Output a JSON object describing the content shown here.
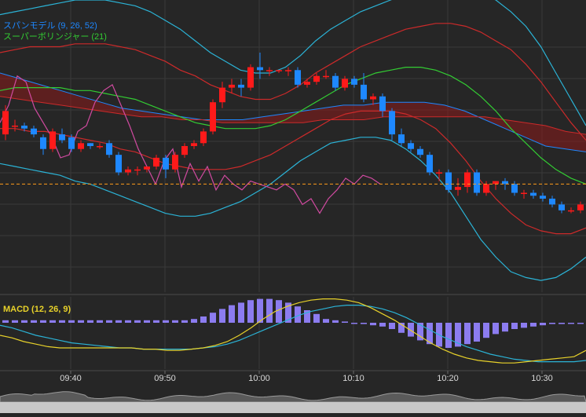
{
  "colors": {
    "background": "#262626",
    "grid": "#3a3a3a",
    "up_candle": "#ff1a1a",
    "down_candle": "#1e88ff",
    "kumo_fill": "#8b1a1a",
    "span_line": "#1e88ff",
    "bb_outer": "#2bb3d6",
    "bb_mid": "#cc2a2a",
    "bb_center": "#33cc33",
    "chikou": "#d04aa0",
    "price_line": "#ff9d1a",
    "macd_hist": "#8c7cf0",
    "macd_line": "#e8d22a",
    "signal_line": "#2bb3d6"
  },
  "legend": {
    "span_model": "スパンモデル (9, 26, 52)",
    "super_bollinger": "スーパーボリンジャー (21)",
    "macd": "MACD (12, 26, 9)"
  },
  "chart_data": [
    {
      "type": "candlestick",
      "x_tick_labels": [
        "09:40",
        "09:50",
        "10:00",
        "10:10",
        "10:20",
        "10:30"
      ],
      "current_price_line": 0.37,
      "candles": [
        [
          0.54,
          0.62,
          0.52,
          0.64
        ],
        [
          0.57,
          0.57,
          0.55,
          0.59
        ],
        [
          0.57,
          0.56,
          0.55,
          0.58
        ],
        [
          0.56,
          0.54,
          0.53,
          0.57
        ],
        [
          0.53,
          0.49,
          0.47,
          0.54
        ],
        [
          0.49,
          0.55,
          0.48,
          0.56
        ],
        [
          0.54,
          0.52,
          0.51,
          0.56
        ],
        [
          0.53,
          0.49,
          0.48,
          0.54
        ],
        [
          0.49,
          0.51,
          0.48,
          0.52
        ],
        [
          0.51,
          0.5,
          0.49,
          0.51
        ],
        [
          0.5,
          0.5,
          0.49,
          0.51
        ],
        [
          0.51,
          0.47,
          0.46,
          0.52
        ],
        [
          0.47,
          0.41,
          0.4,
          0.48
        ],
        [
          0.41,
          0.42,
          0.4,
          0.43
        ],
        [
          0.42,
          0.42,
          0.4,
          0.43
        ],
        [
          0.42,
          0.43,
          0.41,
          0.43
        ],
        [
          0.43,
          0.46,
          0.42,
          0.47
        ],
        [
          0.46,
          0.42,
          0.39,
          0.47
        ],
        [
          0.42,
          0.47,
          0.41,
          0.48
        ],
        [
          0.47,
          0.5,
          0.46,
          0.51
        ],
        [
          0.5,
          0.51,
          0.49,
          0.52
        ],
        [
          0.51,
          0.55,
          0.5,
          0.56
        ],
        [
          0.55,
          0.65,
          0.54,
          0.66
        ],
        [
          0.65,
          0.7,
          0.63,
          0.72
        ],
        [
          0.7,
          0.71,
          0.68,
          0.73
        ],
        [
          0.71,
          0.7,
          0.67,
          0.73
        ],
        [
          0.7,
          0.77,
          0.69,
          0.78
        ],
        [
          0.77,
          0.76,
          0.73,
          0.82
        ],
        [
          0.76,
          0.76,
          0.74,
          0.77
        ],
        [
          0.76,
          0.76,
          0.75,
          0.76
        ],
        [
          0.76,
          0.76,
          0.74,
          0.77
        ],
        [
          0.76,
          0.71,
          0.7,
          0.77
        ],
        [
          0.71,
          0.72,
          0.7,
          0.73
        ],
        [
          0.72,
          0.74,
          0.71,
          0.75
        ],
        [
          0.74,
          0.74,
          0.73,
          0.76
        ],
        [
          0.74,
          0.7,
          0.69,
          0.75
        ],
        [
          0.7,
          0.73,
          0.69,
          0.74
        ],
        [
          0.73,
          0.71,
          0.7,
          0.74
        ],
        [
          0.71,
          0.66,
          0.65,
          0.75
        ],
        [
          0.66,
          0.67,
          0.64,
          0.68
        ],
        [
          0.67,
          0.62,
          0.6,
          0.68
        ],
        [
          0.62,
          0.54,
          0.52,
          0.63
        ],
        [
          0.54,
          0.51,
          0.5,
          0.56
        ],
        [
          0.51,
          0.49,
          0.48,
          0.52
        ],
        [
          0.49,
          0.47,
          0.46,
          0.5
        ],
        [
          0.47,
          0.41,
          0.4,
          0.48
        ],
        [
          0.41,
          0.41,
          0.38,
          0.42
        ],
        [
          0.41,
          0.35,
          0.34,
          0.42
        ],
        [
          0.35,
          0.36,
          0.33,
          0.39
        ],
        [
          0.36,
          0.41,
          0.34,
          0.42
        ],
        [
          0.41,
          0.34,
          0.33,
          0.42
        ],
        [
          0.34,
          0.37,
          0.33,
          0.38
        ],
        [
          0.37,
          0.38,
          0.35,
          0.38
        ],
        [
          0.38,
          0.37,
          0.35,
          0.39
        ],
        [
          0.37,
          0.34,
          0.33,
          0.38
        ],
        [
          0.34,
          0.34,
          0.32,
          0.35
        ],
        [
          0.34,
          0.33,
          0.32,
          0.35
        ],
        [
          0.33,
          0.32,
          0.31,
          0.34
        ],
        [
          0.32,
          0.3,
          0.29,
          0.33
        ],
        [
          0.3,
          0.28,
          0.27,
          0.31
        ],
        [
          0.28,
          0.28,
          0.27,
          0.29
        ],
        [
          0.28,
          0.3,
          0.27,
          0.31
        ],
        [
          0.3,
          0.28,
          0.27,
          0.3
        ],
        [
          0.28,
          0.31,
          0.27,
          0.31
        ],
        [
          0.31,
          0.31,
          0.3,
          0.32
        ],
        [
          0.31,
          0.34,
          0.3,
          0.35
        ],
        [
          0.34,
          0.38,
          0.33,
          0.39
        ],
        [
          0.38,
          0.37,
          0.36,
          0.39
        ]
      ],
      "bb_upper2": [
        0.95,
        0.96,
        0.97,
        0.98,
        0.99,
        1.0,
        1.0,
        1.0,
        0.99,
        0.98,
        0.96,
        0.93,
        0.9,
        0.86,
        0.82,
        0.79,
        0.76,
        0.75,
        0.75,
        0.77,
        0.81,
        0.86,
        0.9,
        0.93,
        0.96,
        0.98,
        1.0,
        1.02,
        1.04,
        1.05,
        1.05,
        1.04,
        1.02,
        1.0,
        0.96,
        0.91,
        0.84,
        0.75,
        0.66,
        0.57
      ],
      "bb_upper1": [
        0.82,
        0.83,
        0.84,
        0.84,
        0.84,
        0.85,
        0.85,
        0.85,
        0.84,
        0.83,
        0.81,
        0.79,
        0.76,
        0.74,
        0.71,
        0.69,
        0.67,
        0.66,
        0.66,
        0.68,
        0.71,
        0.75,
        0.78,
        0.81,
        0.84,
        0.86,
        0.88,
        0.9,
        0.91,
        0.92,
        0.92,
        0.91,
        0.89,
        0.86,
        0.83,
        0.78,
        0.72,
        0.65,
        0.58,
        0.52
      ],
      "bb_center": [
        0.69,
        0.7,
        0.7,
        0.7,
        0.7,
        0.69,
        0.69,
        0.68,
        0.67,
        0.66,
        0.64,
        0.62,
        0.6,
        0.58,
        0.57,
        0.56,
        0.56,
        0.56,
        0.57,
        0.59,
        0.62,
        0.65,
        0.68,
        0.71,
        0.73,
        0.75,
        0.76,
        0.77,
        0.77,
        0.76,
        0.74,
        0.71,
        0.67,
        0.62,
        0.56,
        0.51,
        0.46,
        0.42,
        0.39,
        0.37
      ],
      "bb_lower1": [
        0.56,
        0.56,
        0.55,
        0.55,
        0.54,
        0.53,
        0.52,
        0.51,
        0.49,
        0.48,
        0.46,
        0.44,
        0.43,
        0.42,
        0.42,
        0.42,
        0.43,
        0.45,
        0.47,
        0.5,
        0.53,
        0.56,
        0.59,
        0.61,
        0.62,
        0.62,
        0.62,
        0.61,
        0.59,
        0.56,
        0.51,
        0.45,
        0.38,
        0.32,
        0.27,
        0.23,
        0.21,
        0.2,
        0.2,
        0.22
      ],
      "bb_lower2": [
        0.44,
        0.43,
        0.42,
        0.41,
        0.4,
        0.38,
        0.37,
        0.35,
        0.33,
        0.31,
        0.29,
        0.27,
        0.26,
        0.26,
        0.27,
        0.29,
        0.31,
        0.34,
        0.37,
        0.41,
        0.45,
        0.48,
        0.51,
        0.52,
        0.53,
        0.53,
        0.52,
        0.49,
        0.45,
        0.4,
        0.34,
        0.26,
        0.18,
        0.12,
        0.07,
        0.05,
        0.04,
        0.05,
        0.08,
        0.12
      ],
      "span_a": [
        0.75,
        0.73,
        0.71,
        0.69,
        0.67,
        0.65,
        0.63,
        0.62,
        0.61,
        0.6,
        0.59,
        0.59,
        0.59,
        0.6,
        0.61,
        0.62,
        0.63,
        0.64,
        0.64,
        0.65,
        0.65,
        0.65,
        0.64,
        0.62,
        0.59,
        0.56,
        0.53,
        0.5,
        0.49,
        0.48
      ],
      "span_b": [
        0.67,
        0.66,
        0.65,
        0.64,
        0.63,
        0.62,
        0.61,
        0.6,
        0.6,
        0.59,
        0.59,
        0.58,
        0.58,
        0.58,
        0.58,
        0.58,
        0.59,
        0.59,
        0.59,
        0.6,
        0.6,
        0.6,
        0.6,
        0.6,
        0.6,
        0.59,
        0.58,
        0.57,
        0.55,
        0.54
      ],
      "chikou": [
        0.58,
        0.64,
        0.74,
        0.72,
        0.63,
        0.58,
        0.53,
        0.46,
        0.47,
        0.55,
        0.57,
        0.65,
        0.69,
        0.71,
        0.64,
        0.57,
        0.49,
        0.43,
        0.37,
        0.45,
        0.49,
        0.36,
        0.44,
        0.38,
        0.43,
        0.35,
        0.4,
        0.37,
        0.35,
        0.38,
        0.37,
        0.36,
        0.35,
        0.37,
        0.35,
        0.3,
        0.32,
        0.27,
        0.32,
        0.35,
        0.39,
        0.37,
        0.4,
        0.39,
        0.37
      ]
    },
    {
      "type": "macd",
      "histogram": [
        0.02,
        0.02,
        0.02,
        0.02,
        0.02,
        0.02,
        0.02,
        0.02,
        0.02,
        0.02,
        0.02,
        0.02,
        0.02,
        0.02,
        0.02,
        0.02,
        0.02,
        0.02,
        0.02,
        0.02,
        0.03,
        0.05,
        0.08,
        0.11,
        0.14,
        0.16,
        0.18,
        0.19,
        0.19,
        0.18,
        0.16,
        0.13,
        0.1,
        0.07,
        0.03,
        0.02,
        0.01,
        0,
        -0.01,
        -0.02,
        -0.03,
        -0.05,
        -0.08,
        -0.11,
        -0.14,
        -0.17,
        -0.19,
        -0.2,
        -0.19,
        -0.17,
        -0.15,
        -0.12,
        -0.09,
        -0.07,
        -0.05,
        -0.04,
        -0.03,
        -0.02,
        -0.01,
        -0.01,
        0,
        0,
        0,
        0,
        0,
        0.01,
        0.02,
        0.03
      ],
      "macd_line": [
        -0.1,
        -0.12,
        -0.15,
        -0.17,
        -0.19,
        -0.2,
        -0.2,
        -0.2,
        -0.2,
        -0.2,
        -0.2,
        -0.2,
        -0.21,
        -0.21,
        -0.22,
        -0.22,
        -0.21,
        -0.2,
        -0.18,
        -0.15,
        -0.1,
        -0.04,
        0.03,
        0.09,
        0.13,
        0.16,
        0.18,
        0.19,
        0.19,
        0.18,
        0.16,
        0.12,
        0.07,
        0.02,
        -0.04,
        -0.1,
        -0.16,
        -0.21,
        -0.25,
        -0.28,
        -0.3,
        -0.31,
        -0.32,
        -0.32,
        -0.31,
        -0.3,
        -0.29,
        -0.28,
        -0.27,
        -0.22
      ],
      "signal_line": [
        -0.02,
        -0.04,
        -0.07,
        -0.1,
        -0.12,
        -0.14,
        -0.16,
        -0.17,
        -0.18,
        -0.19,
        -0.2,
        -0.2,
        -0.21,
        -0.21,
        -0.21,
        -0.21,
        -0.21,
        -0.2,
        -0.19,
        -0.17,
        -0.14,
        -0.1,
        -0.06,
        -0.02,
        0.02,
        0.06,
        0.09,
        0.11,
        0.13,
        0.14,
        0.14,
        0.13,
        0.11,
        0.08,
        0.04,
        -0.01,
        -0.06,
        -0.11,
        -0.15,
        -0.19,
        -0.22,
        -0.25,
        -0.27,
        -0.29,
        -0.3,
        -0.31,
        -0.31,
        -0.31,
        -0.31,
        -0.3
      ]
    }
  ]
}
